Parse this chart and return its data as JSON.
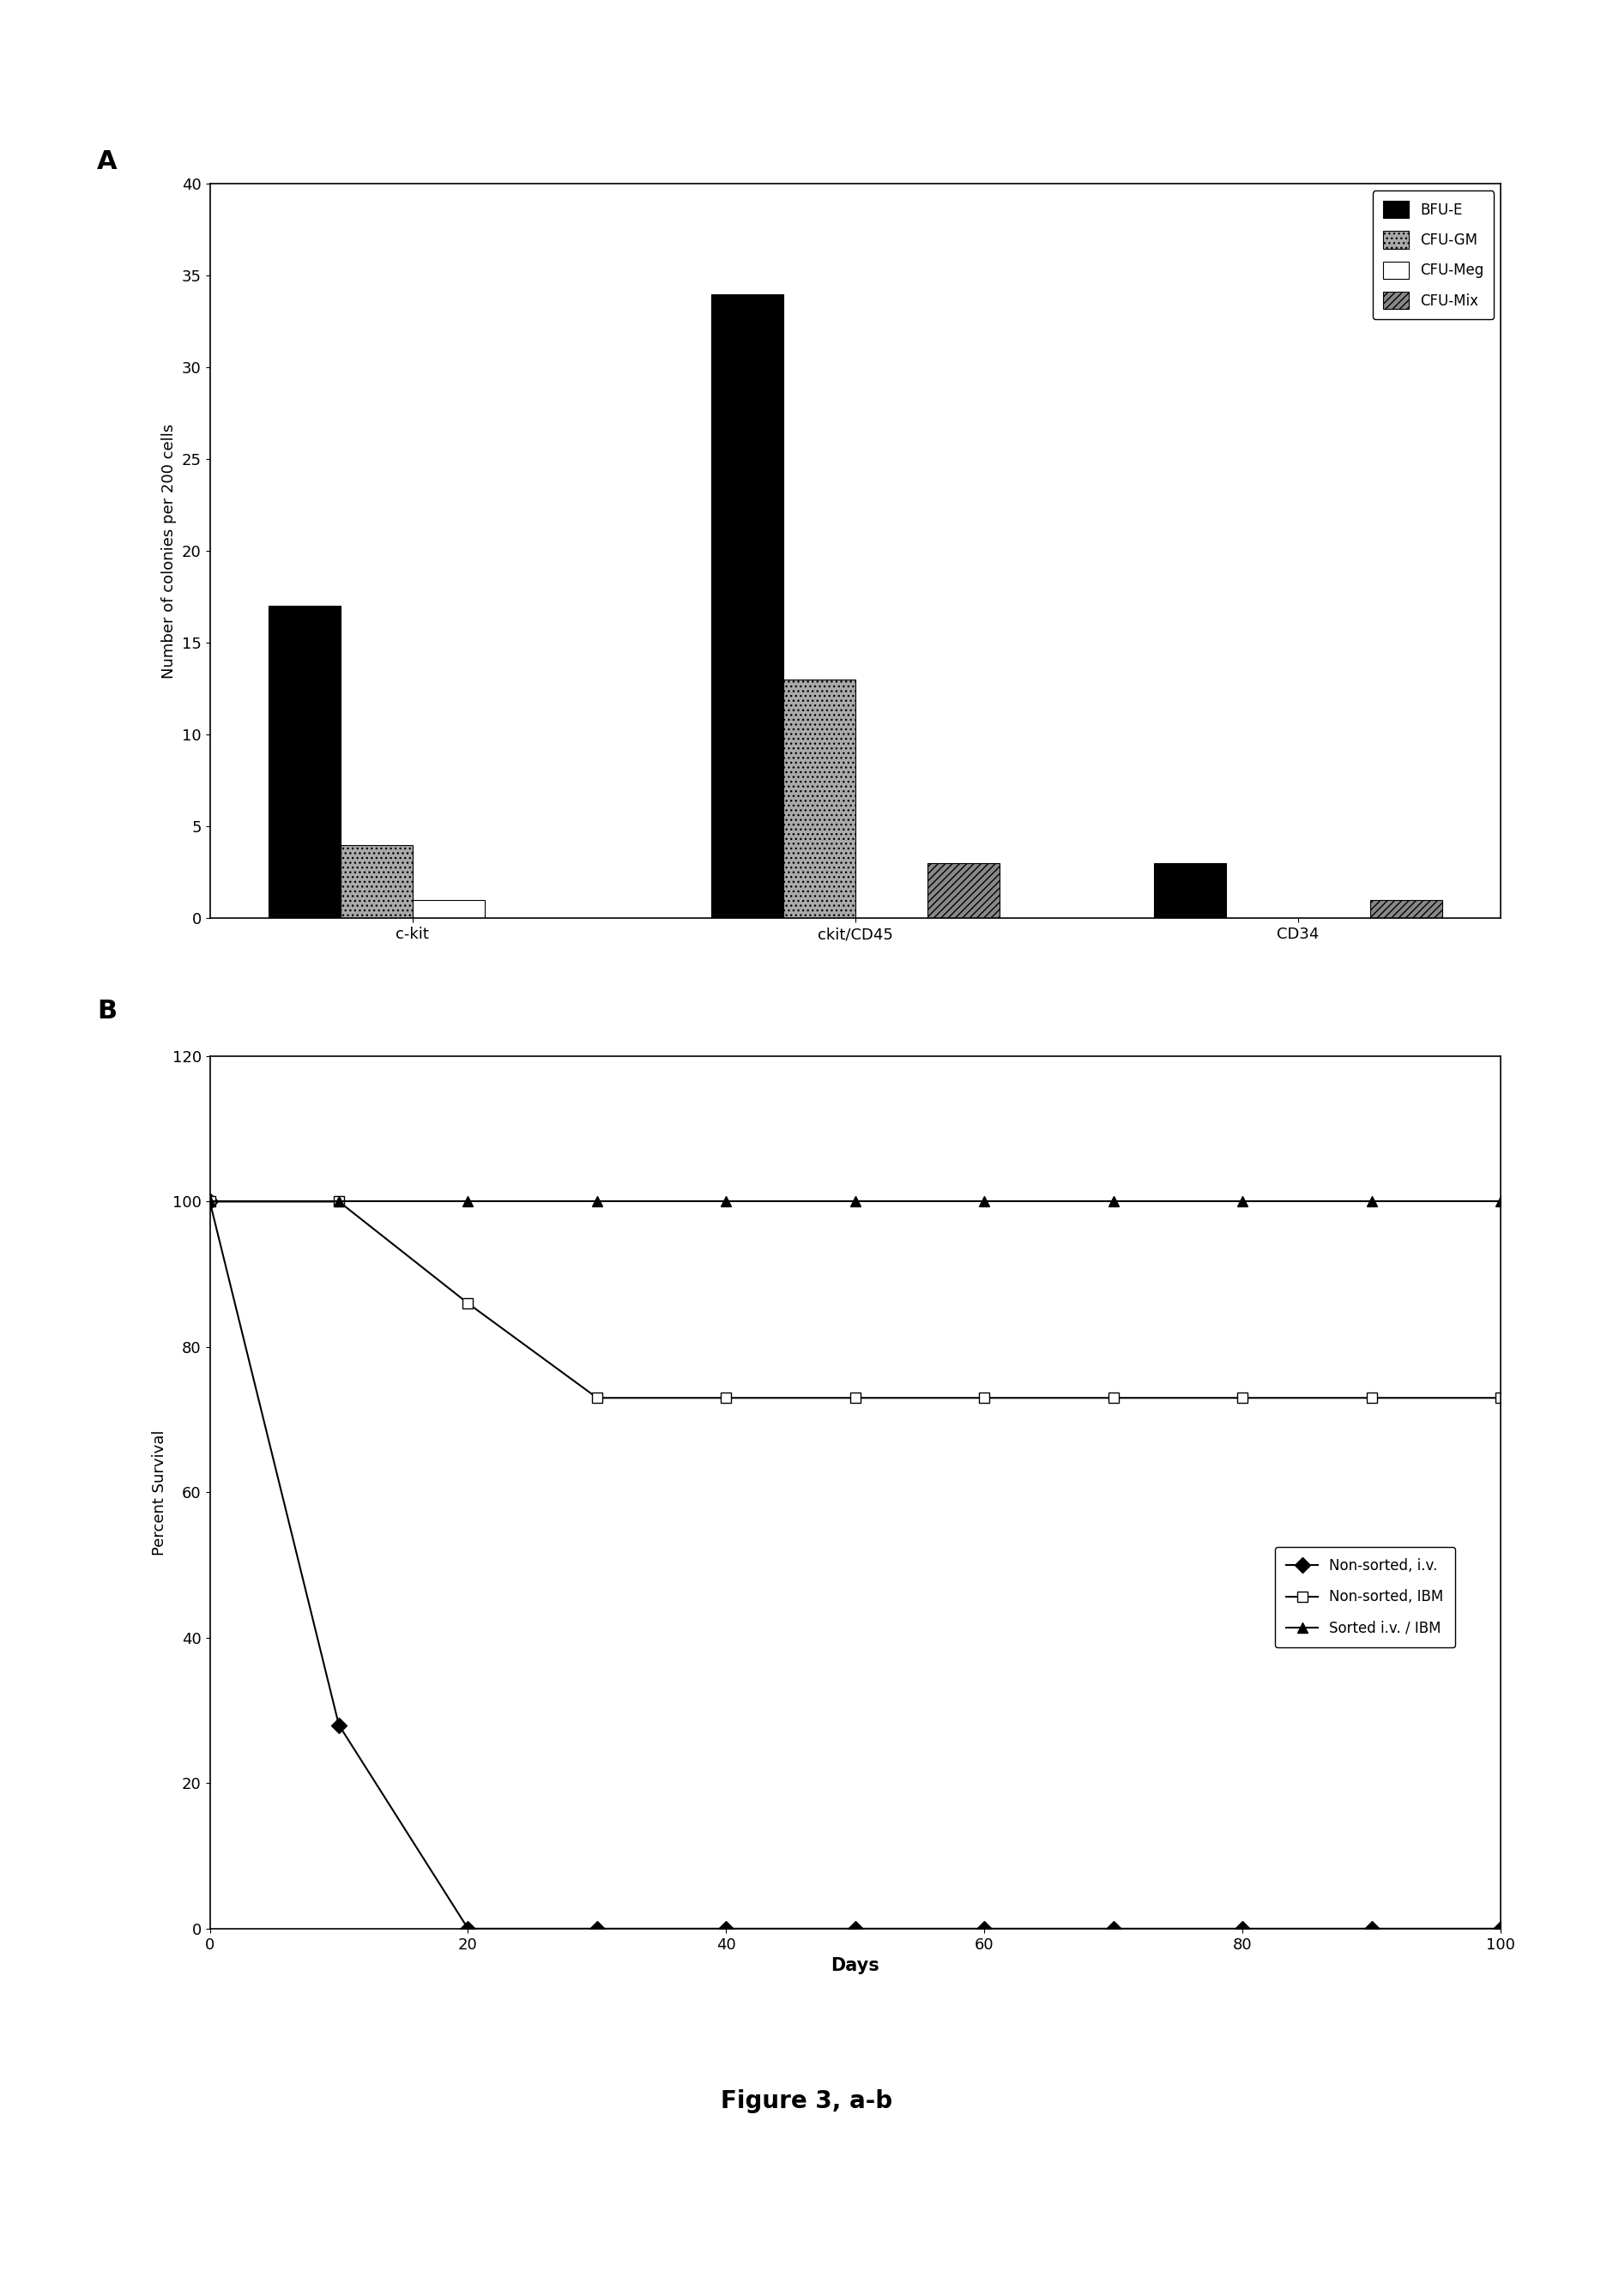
{
  "panel_a": {
    "categories": [
      "c-kit",
      "ckit/CD45",
      "CD34"
    ],
    "series": {
      "BFU-E": [
        17,
        34,
        3
      ],
      "CFU-GM": [
        4,
        13,
        0
      ],
      "CFU-Meg": [
        1,
        0,
        0
      ],
      "CFU-Mix": [
        0,
        3,
        1
      ]
    },
    "bar_colors": {
      "BFU-E": "#000000",
      "CFU-GM": "#aaaaaa",
      "CFU-Meg": "#ffffff",
      "CFU-Mix": "#888888"
    },
    "bar_hatches": {
      "BFU-E": "",
      "CFU-GM": "...",
      "CFU-Meg": "",
      "CFU-Mix": "////"
    },
    "bar_edgecolors": {
      "BFU-E": "#000000",
      "CFU-GM": "#000000",
      "CFU-Meg": "#000000",
      "CFU-Mix": "#000000"
    },
    "ylabel": "Number of colonies per 200 cells",
    "ylim": [
      0,
      40
    ],
    "yticks": [
      0,
      5,
      10,
      15,
      20,
      25,
      30,
      35,
      40
    ],
    "panel_label": "A"
  },
  "panel_b": {
    "series": {
      "Non-sorted, i.v.": {
        "x": [
          0,
          10,
          20,
          30,
          40,
          50,
          60,
          70,
          80,
          90,
          100
        ],
        "y": [
          100,
          28,
          0,
          0,
          0,
          0,
          0,
          0,
          0,
          0,
          0
        ],
        "marker": "D",
        "color": "#000000",
        "linestyle": "-",
        "markerfacecolor": "#000000"
      },
      "Non-sorted, IBM": {
        "x": [
          0,
          10,
          20,
          30,
          40,
          50,
          60,
          70,
          80,
          90,
          100
        ],
        "y": [
          100,
          100,
          86,
          73,
          73,
          73,
          73,
          73,
          73,
          73,
          73
        ],
        "marker": "s",
        "color": "#000000",
        "linestyle": "-",
        "markerfacecolor": "#ffffff"
      },
      "Sorted i.v. / IBM": {
        "x": [
          0,
          10,
          20,
          30,
          40,
          50,
          60,
          70,
          80,
          90,
          100
        ],
        "y": [
          100,
          100,
          100,
          100,
          100,
          100,
          100,
          100,
          100,
          100,
          100
        ],
        "marker": "^",
        "color": "#000000",
        "linestyle": "-",
        "markerfacecolor": "#000000"
      }
    },
    "xlabel": "Days",
    "ylabel": "Percent Survival",
    "ylim": [
      0,
      120
    ],
    "xlim": [
      0,
      100
    ],
    "yticks": [
      0,
      20,
      40,
      60,
      80,
      100,
      120
    ],
    "xticks": [
      0,
      20,
      40,
      60,
      80,
      100
    ],
    "panel_label": "B"
  },
  "figure_title": "Figure 3, a-b",
  "background_color": "#ffffff"
}
